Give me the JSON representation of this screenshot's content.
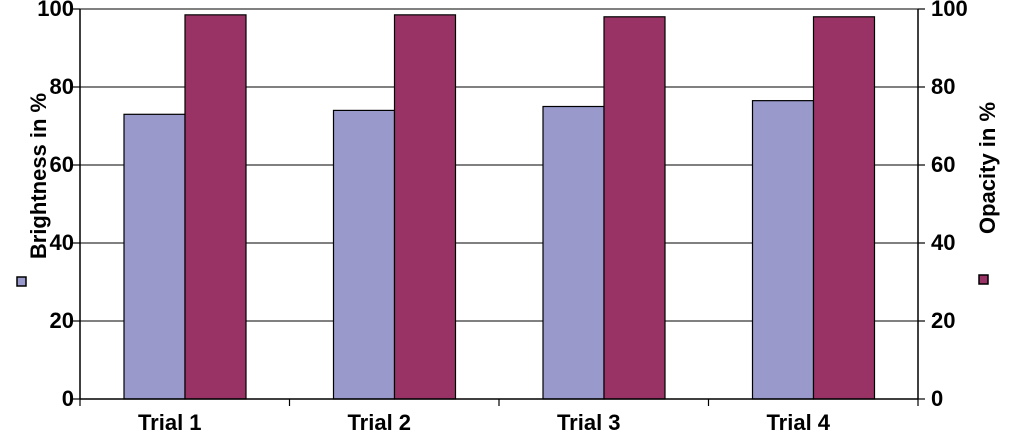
{
  "chart_data": {
    "type": "bar",
    "categories": [
      "Trial 1",
      "Trial 2",
      "Trial 3",
      "Trial 4"
    ],
    "series": [
      {
        "name": "Brightness in %",
        "axis": "left",
        "color": "#9999cc",
        "values": [
          73,
          74,
          75,
          76.5
        ]
      },
      {
        "name": "Opacity in %",
        "axis": "right",
        "color": "#993366",
        "values": [
          98.5,
          98.5,
          98,
          98
        ]
      }
    ],
    "y_left": {
      "label": "Brightness in %",
      "range": [
        0,
        100
      ],
      "ticks": [
        "0",
        "20",
        "40",
        "60",
        "80",
        "100"
      ]
    },
    "y_right": {
      "label": "Opacity in %",
      "range": [
        0,
        100
      ],
      "ticks": [
        "0",
        "20",
        "40",
        "60",
        "80",
        "100"
      ]
    },
    "grid": "horizontal major gridlines",
    "legend": "legend color keys beside axis titles"
  }
}
